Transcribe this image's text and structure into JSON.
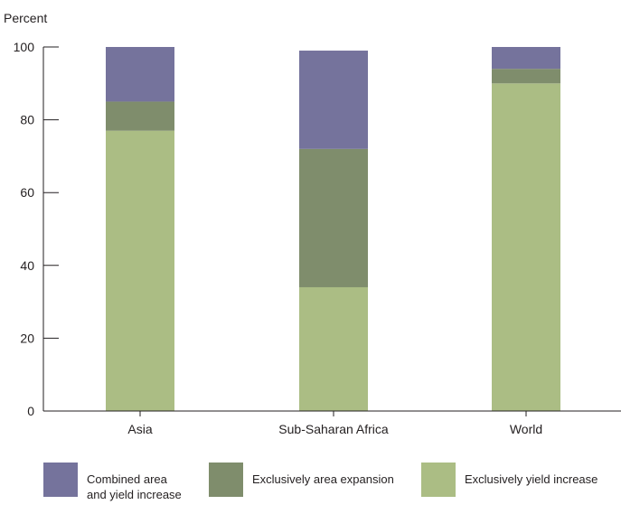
{
  "chart_data": {
    "type": "bar",
    "stacked": true,
    "title": "",
    "ylabel": "Percent",
    "xlabel": "",
    "ylim": [
      0,
      100
    ],
    "yticks": [
      0,
      20,
      40,
      60,
      80,
      100
    ],
    "grid": false,
    "legend_position": "bottom",
    "categories": [
      "Asia",
      "Sub-Saharan Africa",
      "World"
    ],
    "series": [
      {
        "name": "Exclusively yield increase",
        "color": "#abbd84",
        "values": [
          77,
          34,
          90
        ]
      },
      {
        "name": "Exclusively area expansion",
        "color": "#7f8d6c",
        "values": [
          8,
          38,
          4
        ]
      },
      {
        "name": "Combined area\nand yield increase",
        "color": "#75739c",
        "values": [
          15,
          27,
          6
        ]
      }
    ],
    "legend_order": [
      2,
      1,
      0
    ]
  }
}
